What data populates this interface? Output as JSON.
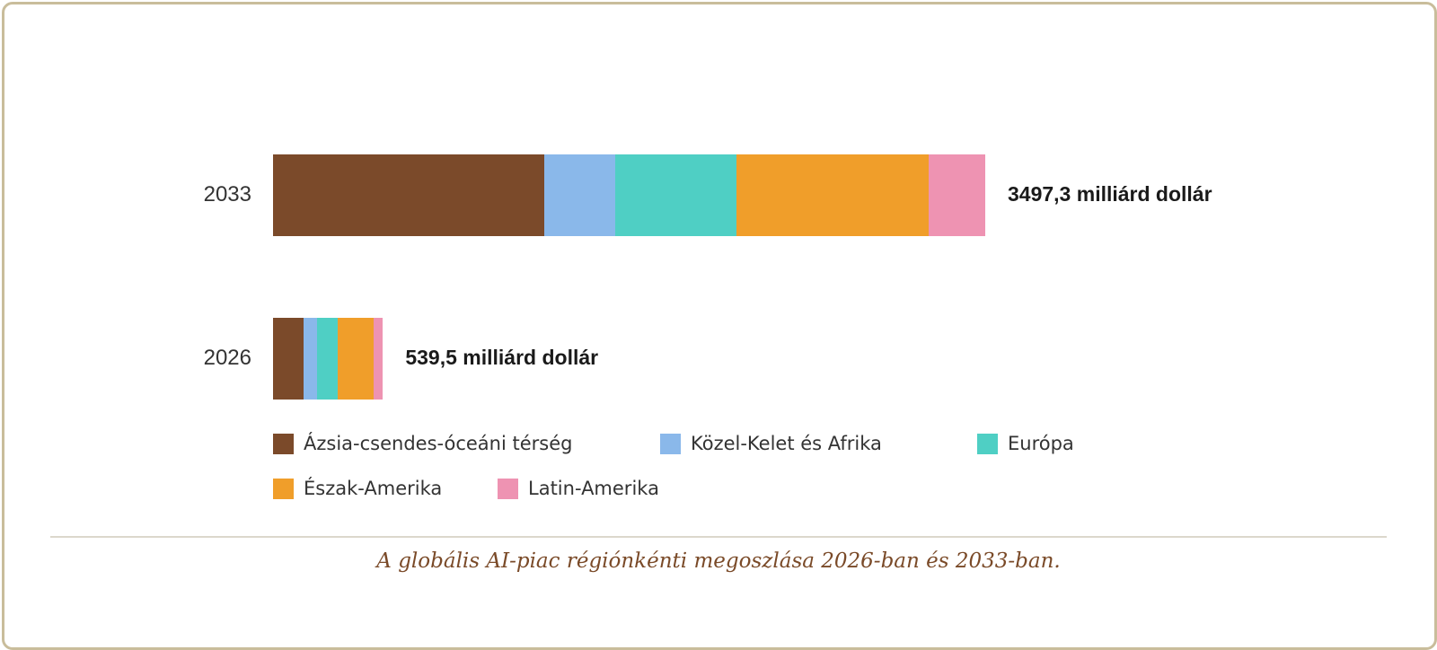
{
  "chart_data": {
    "type": "bar",
    "orientation": "horizontal",
    "stacked": true,
    "categories": [
      "2033",
      "2026"
    ],
    "series": [
      {
        "name": "Ázsia-csendes-óceáni térség",
        "color": "#7b4a2a",
        "values": [
          1332.2,
          148.4
        ]
      },
      {
        "name": "Közel-Kelet és Afrika",
        "color": "#8ab8ea",
        "values": [
          349.7,
          69.4
        ]
      },
      {
        "name": "Európa",
        "color": "#4fcfc4",
        "values": [
          594.5,
          99.8
        ]
      },
      {
        "name": "Észak-Amerika",
        "color": "#f09e2a",
        "values": [
          944.3,
          178.3
        ]
      },
      {
        "name": "Latin-Amerika",
        "color": "#ee93b2",
        "values": [
          276.6,
          43.6
        ]
      }
    ],
    "totals": [
      3497.3,
      539.5
    ],
    "total_labels": [
      "3497,3 milliárd dollár",
      "539,5 milliárd dollár"
    ],
    "xlim": [
      0,
      3497.3
    ],
    "legend_position": "bottom",
    "grid": false
  },
  "caption": "A globális AI-piac régiónkénti megoszlása 2026-ban és 2033-ban."
}
